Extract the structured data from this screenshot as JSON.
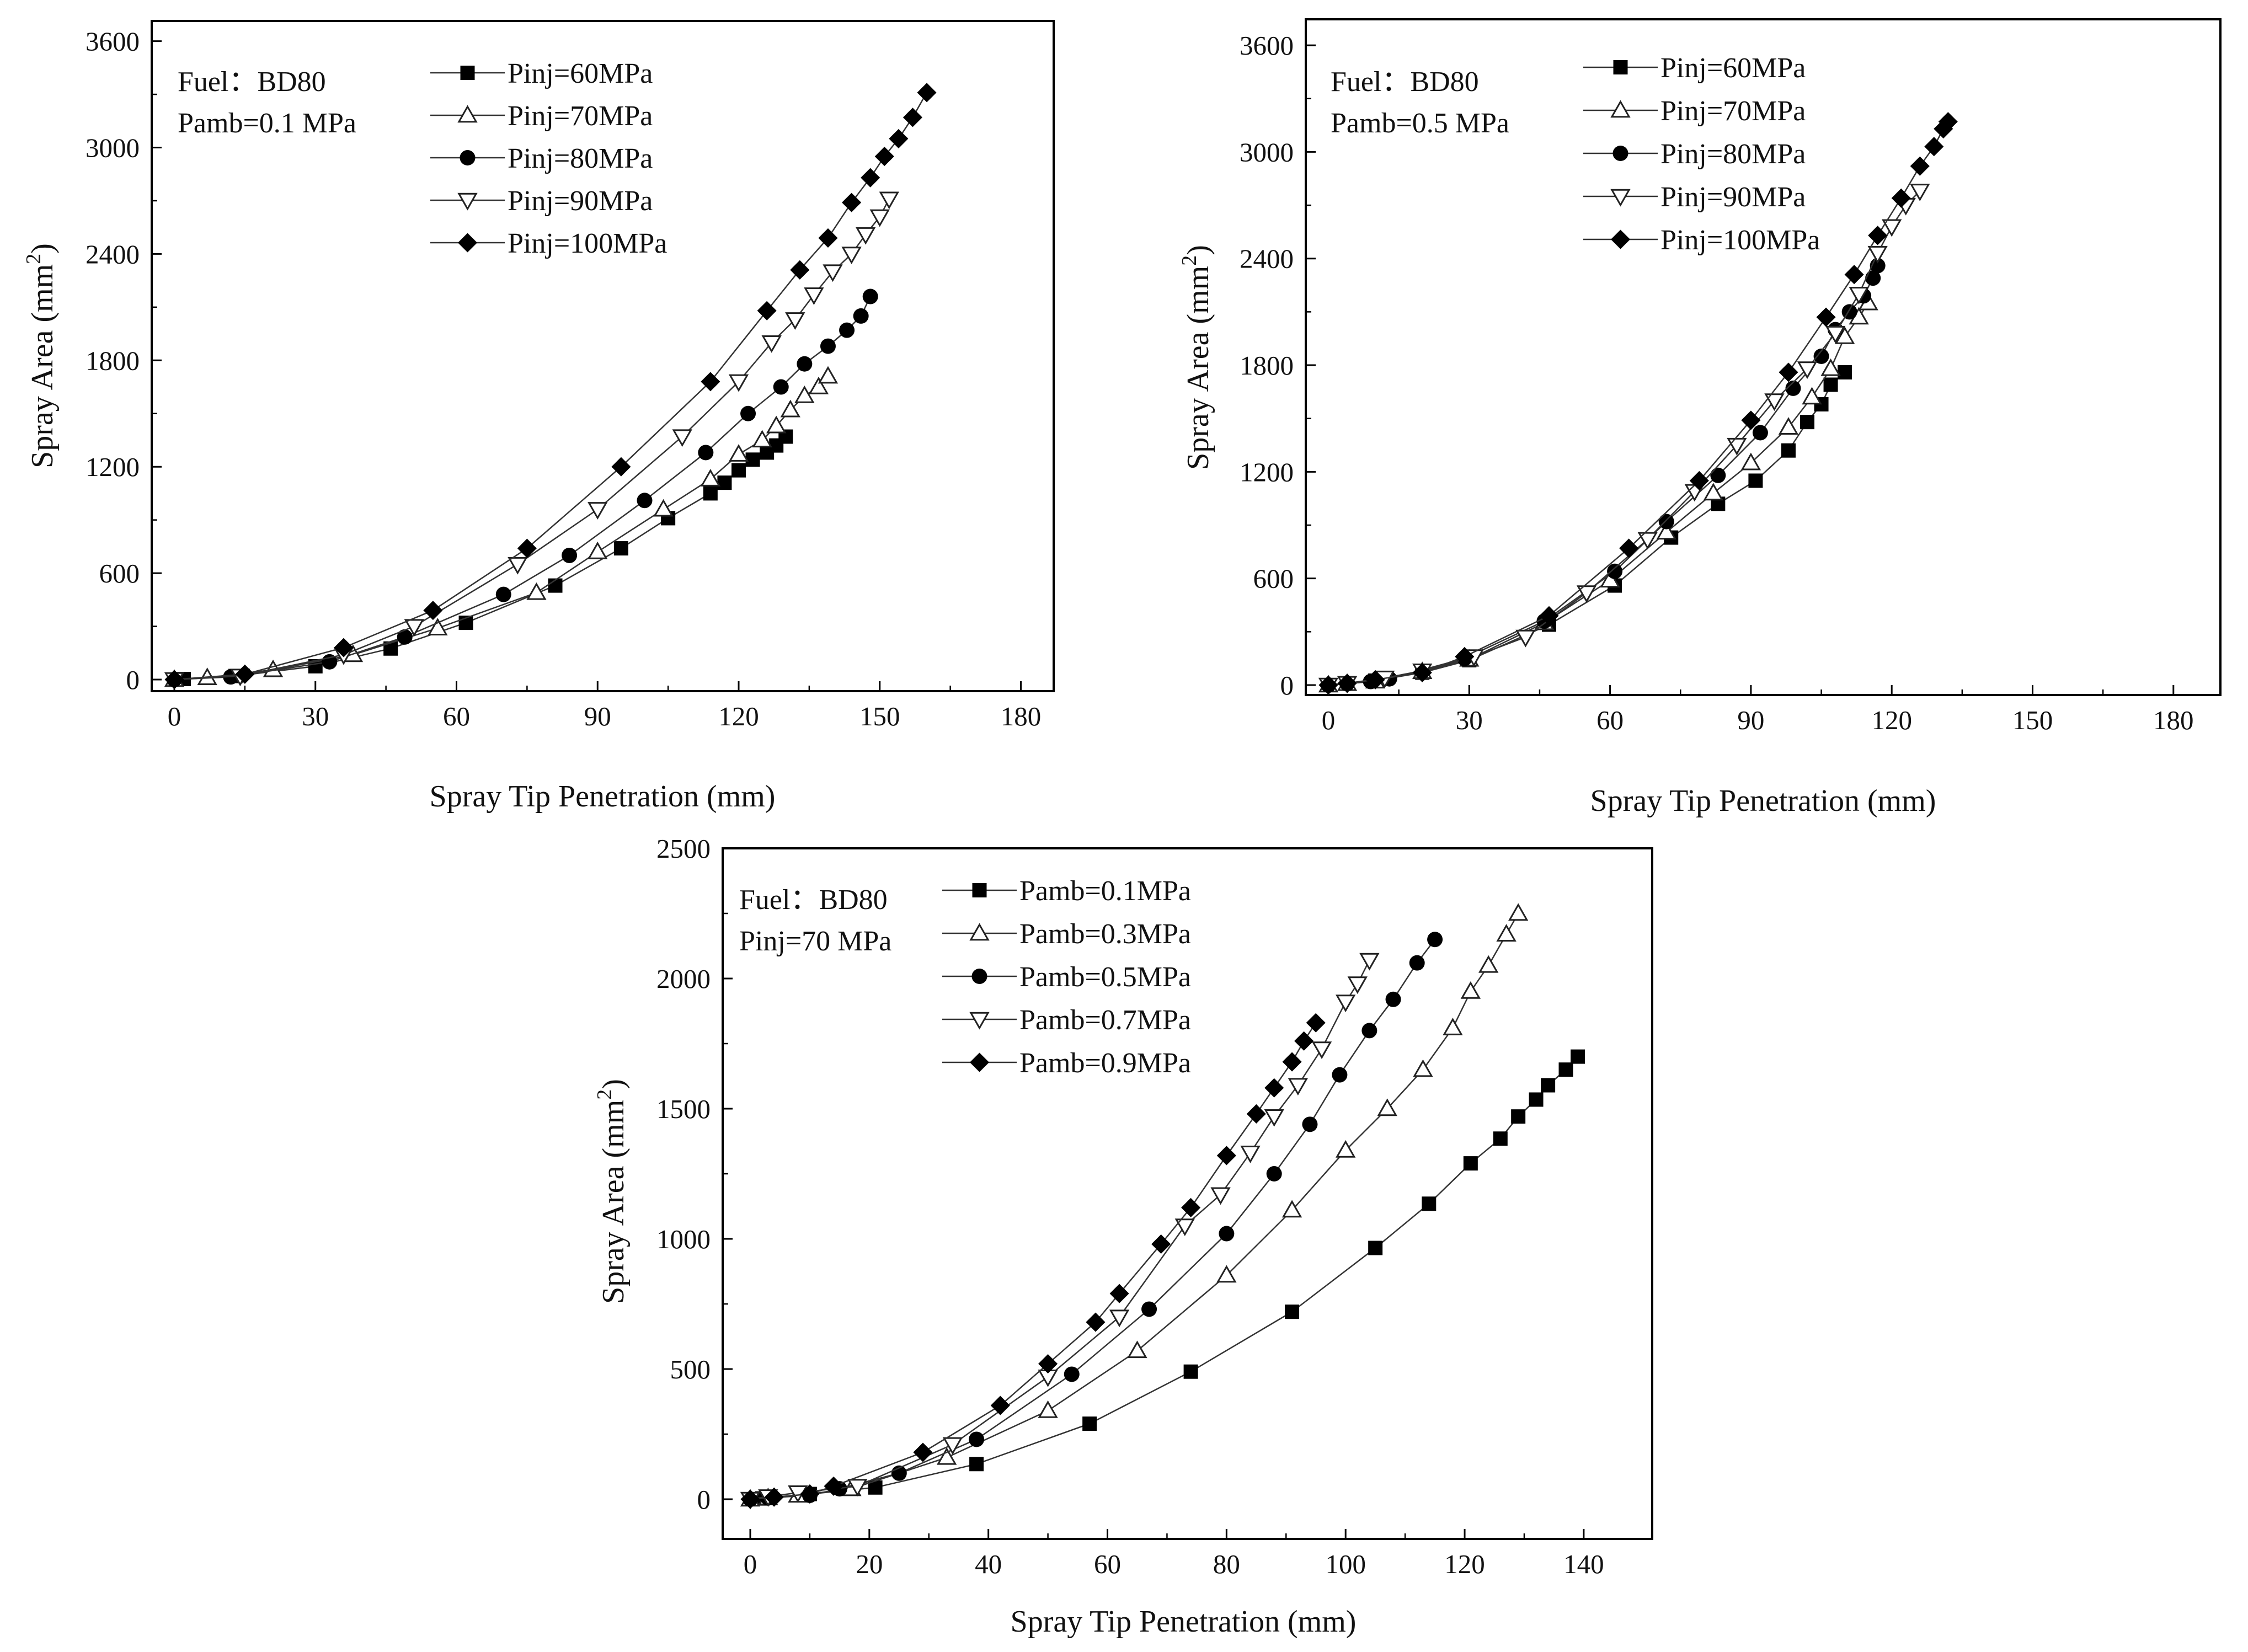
{
  "chart_data": [
    {
      "type": "line",
      "id": "top-left",
      "xlabel": "Spray Tip Penetration (mm)",
      "ylabel": "Spray Area (mm²)",
      "xlim": [
        -5,
        180
      ],
      "ylim": [
        -50,
        3600
      ],
      "xticks": [
        0,
        30,
        60,
        90,
        120,
        150,
        180
      ],
      "yticks": [
        0,
        600,
        1200,
        1800,
        2400,
        3000,
        3600
      ],
      "annotations": [
        "Fuel：BD80",
        "Pamb=0.1 MPa"
      ],
      "legend_position": "top-left",
      "series": [
        {
          "name": "Pinj=60MPa",
          "marker": "square",
          "x": [
            0,
            2,
            13,
            30,
            46,
            62,
            81,
            95,
            105,
            114,
            117,
            120,
            123,
            126,
            128,
            130
          ],
          "y": [
            0,
            3,
            20,
            75,
            175,
            320,
            530,
            740,
            910,
            1050,
            1110,
            1180,
            1240,
            1280,
            1320,
            1370
          ]
        },
        {
          "name": "Pinj=70MPa",
          "marker": "triangle-up",
          "x": [
            0,
            7,
            21,
            38,
            56,
            77,
            90,
            104,
            114,
            120,
            125,
            128,
            131,
            134,
            137,
            139
          ],
          "y": [
            0,
            10,
            55,
            140,
            290,
            490,
            720,
            960,
            1130,
            1270,
            1350,
            1430,
            1520,
            1600,
            1650,
            1710
          ]
        },
        {
          "name": "Pinj=80MPa",
          "marker": "circle",
          "x": [
            0,
            12,
            33,
            49,
            70,
            84,
            100,
            113,
            122,
            129,
            134,
            139,
            143,
            146,
            148
          ],
          "y": [
            0,
            15,
            100,
            240,
            480,
            700,
            1010,
            1280,
            1500,
            1650,
            1780,
            1880,
            1970,
            2050,
            2160
          ]
        },
        {
          "name": "Pinj=90MPa",
          "marker": "triangle-down",
          "x": [
            0,
            14,
            36,
            51,
            73,
            90,
            108,
            120,
            127,
            132,
            136,
            140,
            144,
            147,
            150,
            152
          ],
          "y": [
            0,
            20,
            140,
            300,
            650,
            960,
            1370,
            1680,
            1900,
            2030,
            2170,
            2300,
            2400,
            2510,
            2610,
            2710
          ]
        },
        {
          "name": "Pinj=100MPa",
          "marker": "diamond",
          "x": [
            0,
            15,
            36,
            55,
            75,
            95,
            114,
            126,
            133,
            139,
            144,
            148,
            151,
            154,
            157,
            160
          ],
          "y": [
            0,
            30,
            180,
            390,
            740,
            1200,
            1680,
            2080,
            2310,
            2490,
            2690,
            2830,
            2950,
            3050,
            3170,
            3310
          ]
        }
      ]
    },
    {
      "type": "line",
      "id": "top-right",
      "xlabel": "Spray Tip Penetration (mm)",
      "ylabel": "Spray Area (mm²)",
      "xlim": [
        -5,
        180
      ],
      "ylim": [
        -50,
        3600
      ],
      "xticks": [
        0,
        30,
        60,
        90,
        120,
        150,
        180
      ],
      "yticks": [
        0,
        600,
        1200,
        1800,
        2400,
        3000,
        3600
      ],
      "annotations": [
        "Fuel：BD80",
        "Pamb=0.5 MPa"
      ],
      "legend_position": "top-left",
      "series": [
        {
          "name": "Pinj=60MPa",
          "marker": "square",
          "x": [
            0,
            4,
            10,
            20,
            30,
            47,
            61,
            73,
            83,
            91,
            98,
            102,
            105,
            107,
            110
          ],
          "y": [
            0,
            10,
            25,
            70,
            140,
            340,
            560,
            830,
            1020,
            1150,
            1320,
            1480,
            1580,
            1690,
            1760
          ]
        },
        {
          "name": "Pinj=70MPa",
          "marker": "triangle-up",
          "x": [
            0,
            4,
            10,
            20,
            30,
            46,
            60,
            72,
            82,
            90,
            98,
            103,
            107,
            110,
            113,
            115
          ],
          "y": [
            0,
            8,
            22,
            75,
            145,
            350,
            590,
            860,
            1080,
            1250,
            1450,
            1620,
            1780,
            1960,
            2070,
            2150
          ]
        },
        {
          "name": "Pinj=80MPa",
          "marker": "circle",
          "x": [
            0,
            4,
            9,
            13,
            29,
            46,
            61,
            72,
            83,
            92,
            99,
            105,
            108,
            111,
            114,
            116,
            117
          ],
          "y": [
            0,
            8,
            20,
            35,
            150,
            360,
            640,
            920,
            1180,
            1420,
            1670,
            1850,
            2000,
            2100,
            2190,
            2290,
            2360
          ]
        },
        {
          "name": "Pinj=90MPa",
          "marker": "triangle-down",
          "x": [
            0,
            4,
            12,
            20,
            31,
            42,
            55,
            68,
            78,
            87,
            95,
            102,
            108,
            113,
            117,
            120,
            123,
            126
          ],
          "y": [
            0,
            10,
            40,
            80,
            160,
            270,
            520,
            820,
            1090,
            1350,
            1600,
            1780,
            1980,
            2200,
            2430,
            2580,
            2700,
            2780
          ]
        },
        {
          "name": "Pinj=100MPa",
          "marker": "diamond",
          "x": [
            0,
            4,
            10,
            20,
            29,
            47,
            64,
            79,
            90,
            98,
            106,
            112,
            117,
            122,
            126,
            129,
            131,
            132
          ],
          "y": [
            0,
            10,
            30,
            70,
            160,
            390,
            770,
            1150,
            1490,
            1760,
            2070,
            2310,
            2530,
            2740,
            2920,
            3030,
            3130,
            3170
          ]
        }
      ]
    },
    {
      "type": "line",
      "id": "bottom",
      "xlabel": "Spray Tip Penetration (mm)",
      "ylabel": "Spray Area (mm²)",
      "xlim": [
        -5,
        150
      ],
      "ylim": [
        -50,
        2500
      ],
      "xticks": [
        0,
        20,
        40,
        60,
        80,
        100,
        120,
        140
      ],
      "yticks": [
        0,
        500,
        1000,
        1500,
        2000,
        2500
      ],
      "annotations": [
        "Fuel：BD80",
        "Pinj=70 MPa"
      ],
      "legend_position": "top-left",
      "series": [
        {
          "name": "Pamb=0.1MPa",
          "marker": "square",
          "x": [
            0,
            2,
            10,
            21,
            38,
            57,
            74,
            91,
            105,
            114,
            121,
            126,
            129,
            132,
            134,
            137,
            139
          ],
          "y": [
            0,
            3,
            20,
            45,
            135,
            290,
            490,
            720,
            965,
            1135,
            1290,
            1385,
            1470,
            1535,
            1590,
            1650,
            1700
          ]
        },
        {
          "name": "Pamb=0.3MPa",
          "marker": "triangle-up",
          "x": [
            0,
            3,
            8,
            17,
            33,
            50,
            65,
            80,
            91,
            100,
            107,
            113,
            118,
            121,
            124,
            127,
            129
          ],
          "y": [
            0,
            5,
            15,
            40,
            160,
            340,
            570,
            860,
            1110,
            1340,
            1500,
            1650,
            1810,
            1950,
            2050,
            2170,
            2250
          ]
        },
        {
          "name": "Pamb=0.5MPa",
          "marker": "circle",
          "x": [
            0,
            3,
            10,
            15,
            25,
            38,
            54,
            67,
            80,
            88,
            94,
            99,
            104,
            108,
            112,
            115
          ],
          "y": [
            0,
            5,
            15,
            40,
            100,
            230,
            480,
            730,
            1020,
            1250,
            1440,
            1630,
            1800,
            1920,
            2060,
            2150
          ]
        },
        {
          "name": "Pamb=0.7MPa",
          "marker": "triangle-down",
          "x": [
            0,
            3,
            8,
            18,
            34,
            50,
            62,
            73,
            79,
            84,
            88,
            92,
            96,
            100,
            102,
            104
          ],
          "y": [
            0,
            10,
            25,
            50,
            210,
            470,
            700,
            1050,
            1170,
            1330,
            1470,
            1590,
            1730,
            1910,
            1980,
            2070
          ]
        },
        {
          "name": "Pamb=0.9MPa",
          "marker": "diamond",
          "x": [
            0,
            4,
            10,
            14,
            29,
            42,
            50,
            58,
            62,
            69,
            74,
            80,
            85,
            88,
            91,
            93,
            95
          ],
          "y": [
            0,
            8,
            20,
            50,
            180,
            360,
            520,
            680,
            790,
            980,
            1120,
            1320,
            1480,
            1580,
            1680,
            1760,
            1830
          ]
        }
      ]
    }
  ]
}
